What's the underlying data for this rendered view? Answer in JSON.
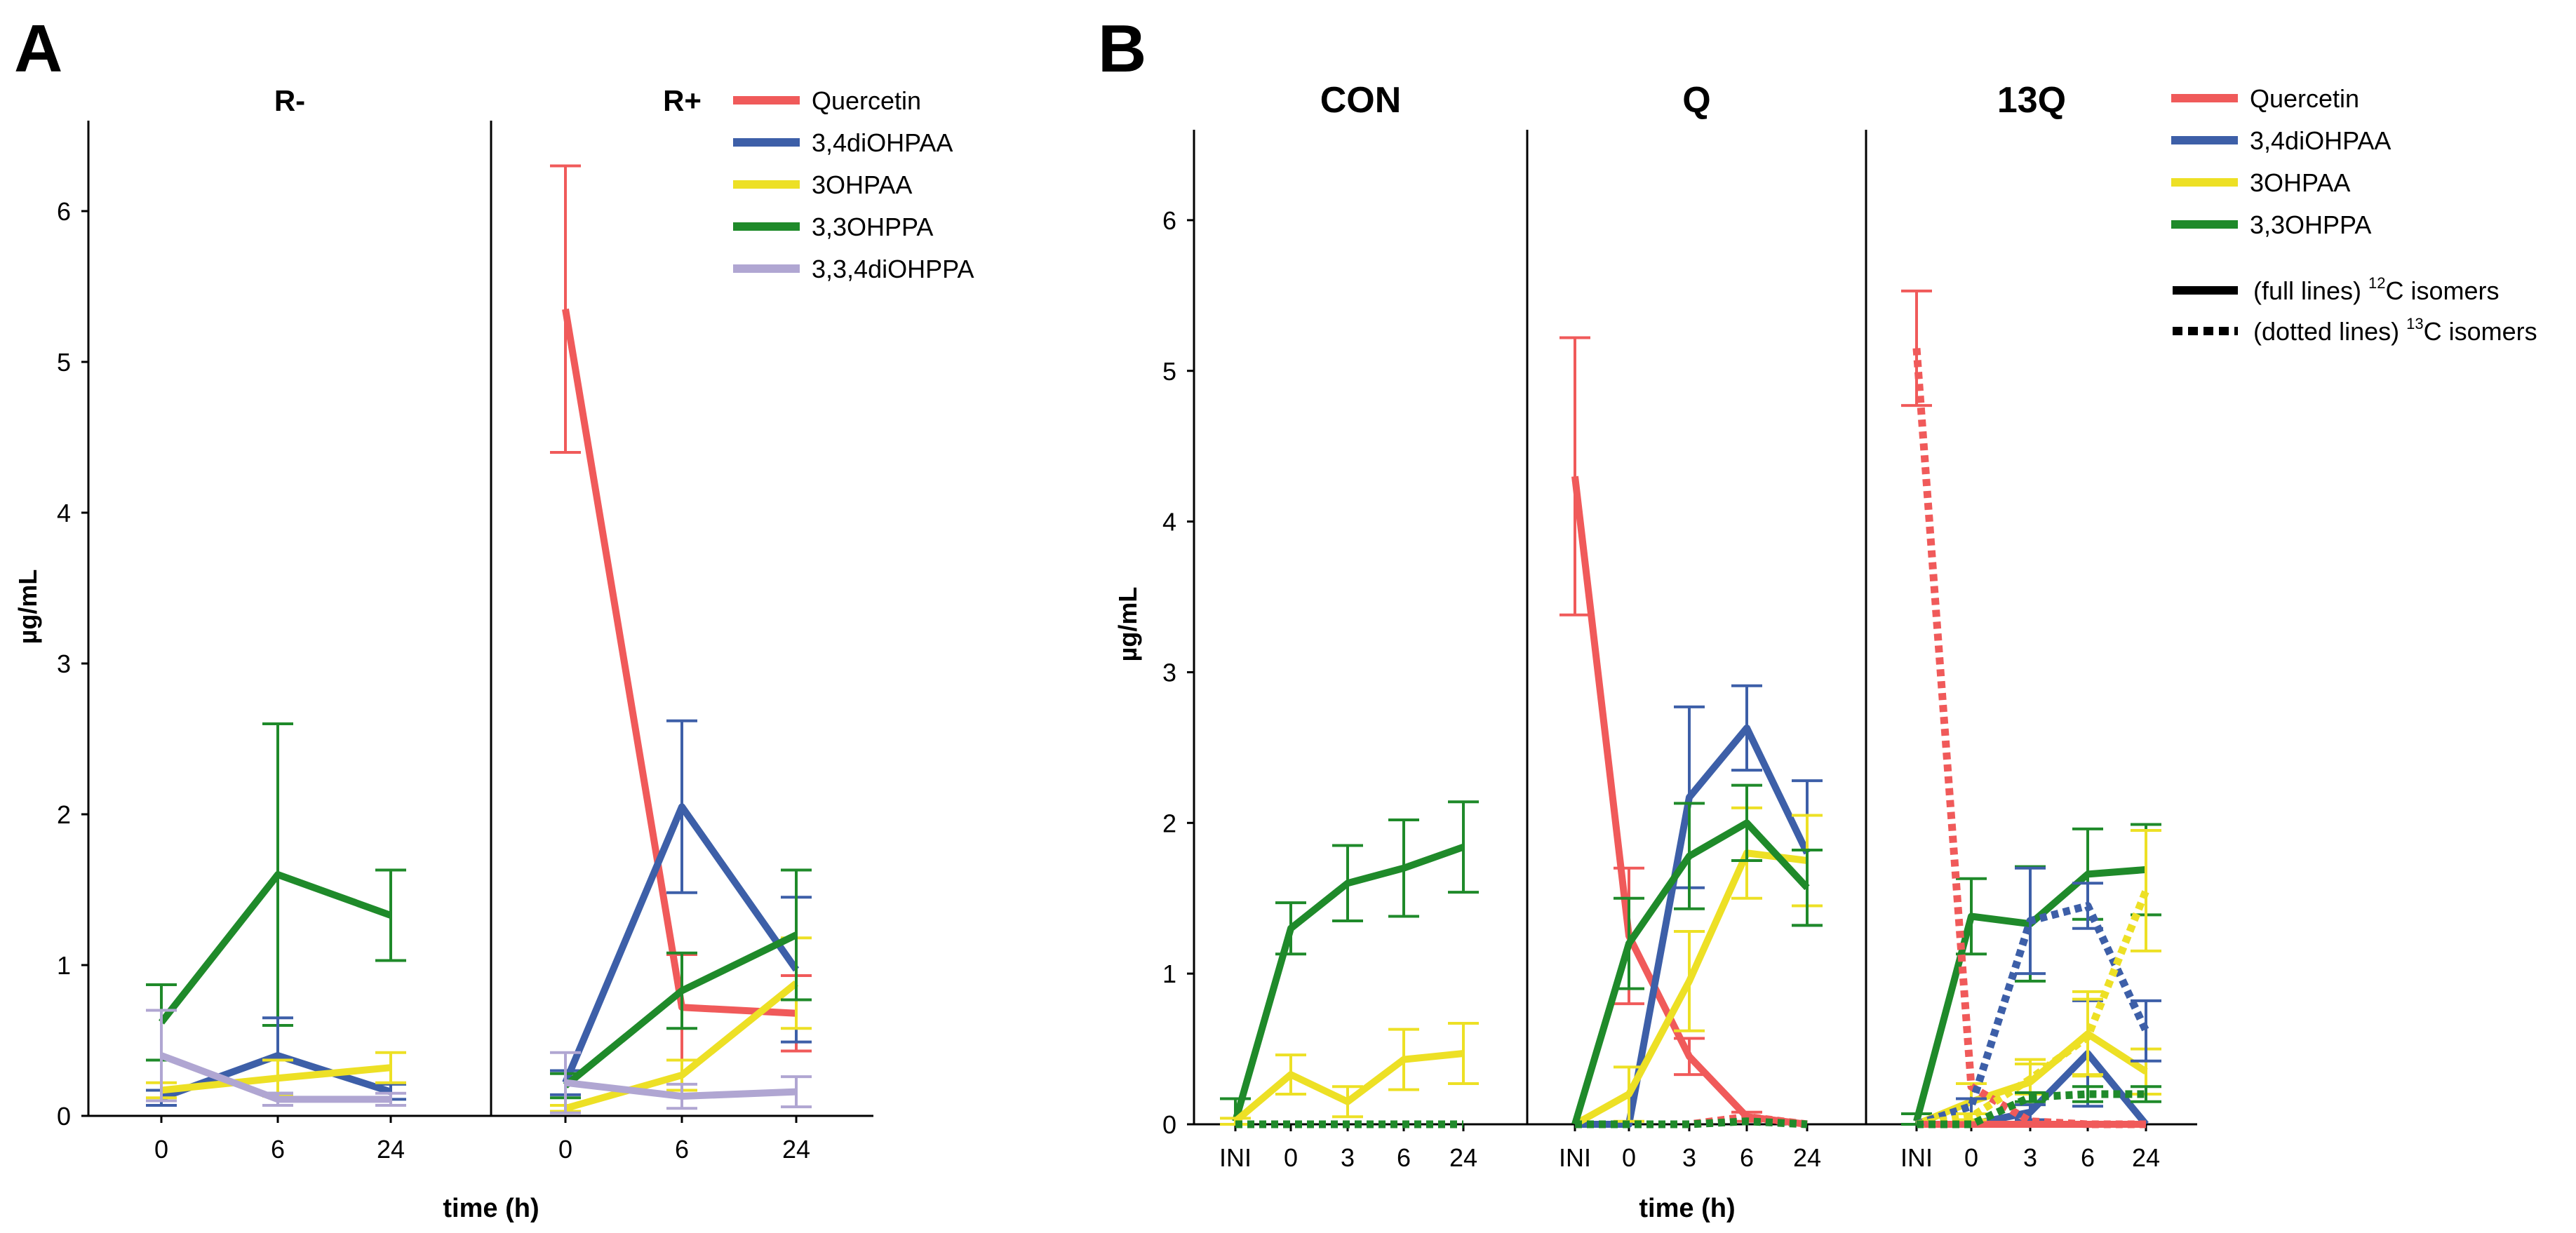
{
  "panel_letters": {
    "A": "A",
    "B": "B"
  },
  "colors": {
    "Quercetin": "#f05a5a",
    "3,4diOHPAA": "#3d5fa8",
    "3OHPAA": "#ede025",
    "3,3OHPPA": "#1f8a2a",
    "3,3,4diOHPPA": "#b0a6d2"
  },
  "chart_data": [
    {
      "id": "A-Rminus",
      "type": "line",
      "title": "R-",
      "xlabel": "time (h)",
      "ylabel": "µg/mL",
      "categories": [
        "0",
        "6",
        "24"
      ],
      "ylim": [
        0,
        6.6
      ],
      "yticks": [
        "0",
        "1",
        "2",
        "3",
        "4",
        "5",
        "6"
      ],
      "series": [
        {
          "name": "3,3OHPPA",
          "values": [
            0.62,
            1.6,
            1.33
          ],
          "err": [
            0.25,
            1.0,
            0.3
          ],
          "style": "solid"
        },
        {
          "name": "3,4diOHPAA",
          "values": [
            0.12,
            0.4,
            0.16
          ],
          "err": [
            0.05,
            0.25,
            0.05
          ],
          "style": "solid"
        },
        {
          "name": "3OHPAA",
          "values": [
            0.17,
            0.25,
            0.32
          ],
          "err": [
            0.05,
            0.12,
            0.1
          ],
          "style": "solid"
        },
        {
          "name": "3,3,4diOHPPA",
          "values": [
            0.4,
            0.11,
            0.11
          ],
          "err": [
            0.3,
            0.04,
            0.04
          ],
          "style": "solid"
        }
      ]
    },
    {
      "id": "A-Rplus",
      "type": "line",
      "title": "R+",
      "xlabel": "time (h)",
      "ylabel": "µg/mL",
      "categories": [
        "0",
        "6",
        "24"
      ],
      "ylim": [
        0,
        6.6
      ],
      "legend": [
        "Quercetin",
        "3,4diOHPAA",
        "3OHPAA",
        "3,3OHPPA",
        "3,3,4diOHPPA"
      ],
      "series": [
        {
          "name": "Quercetin",
          "values": [
            5.35,
            0.72,
            0.68
          ],
          "err": [
            0.95,
            0.35,
            0.25
          ],
          "style": "solid"
        },
        {
          "name": "3,4diOHPAA",
          "values": [
            0.22,
            2.05,
            0.97
          ],
          "err": [
            0.08,
            0.57,
            0.48
          ],
          "style": "solid"
        },
        {
          "name": "3OHPAA",
          "values": [
            0.05,
            0.27,
            0.88
          ],
          "err": [
            0.02,
            0.1,
            0.3
          ],
          "style": "solid"
        },
        {
          "name": "3,3OHPPA",
          "values": [
            0.2,
            0.83,
            1.2
          ],
          "err": [
            0.08,
            0.25,
            0.43
          ],
          "style": "solid"
        },
        {
          "name": "3,3,4diOHPPA",
          "values": [
            0.22,
            0.13,
            0.16
          ],
          "err": [
            0.2,
            0.08,
            0.1
          ],
          "style": "solid"
        }
      ]
    },
    {
      "id": "B-CON",
      "type": "line",
      "title": "CON",
      "xlabel": "time (h)",
      "ylabel": "µg/mL",
      "categories": [
        "INI",
        "0",
        "3",
        "6",
        "24"
      ],
      "ylim": [
        0,
        6.6
      ],
      "yticks": [
        "0",
        "1",
        "2",
        "3",
        "4",
        "5",
        "6"
      ],
      "series": [
        {
          "name": "3,3OHPPA",
          "values": [
            0.02,
            1.3,
            1.6,
            1.7,
            1.84
          ],
          "err": [
            0.15,
            0.17,
            0.25,
            0.32,
            0.3
          ],
          "style": "solid"
        },
        {
          "name": "3OHPAA",
          "values": [
            0.02,
            0.33,
            0.15,
            0.43,
            0.47
          ],
          "err": [
            0.02,
            0.13,
            0.1,
            0.2,
            0.2
          ],
          "style": "solid"
        },
        {
          "name": "Quercetin",
          "values": [
            0.0,
            0.0,
            0.0,
            0.0,
            0.0
          ],
          "err": [
            0,
            0,
            0,
            0,
            0
          ],
          "style": "dotted"
        },
        {
          "name": "3,3OHPPA",
          "values": [
            0.0,
            0.0,
            0.0,
            0.0,
            0.0
          ],
          "err": [
            0,
            0,
            0,
            0,
            0
          ],
          "style": "dotted"
        }
      ]
    },
    {
      "id": "B-Q",
      "type": "line",
      "title": "Q",
      "xlabel": "time (h)",
      "ylabel": "µg/mL",
      "categories": [
        "INI",
        "0",
        "3",
        "6",
        "24"
      ],
      "ylim": [
        0,
        6.6
      ],
      "series": [
        {
          "name": "Quercetin",
          "values": [
            4.3,
            1.25,
            0.45,
            0.05,
            0.0
          ],
          "err": [
            0.92,
            0.45,
            0.12,
            0.03,
            0.0
          ],
          "style": "solid"
        },
        {
          "name": "3,4diOHPAA",
          "values": [
            0.0,
            0.0,
            2.17,
            2.63,
            1.8
          ],
          "err": [
            0.0,
            0.0,
            0.6,
            0.28,
            0.48
          ],
          "style": "solid"
        },
        {
          "name": "3OHPAA",
          "values": [
            0.0,
            0.2,
            0.95,
            1.8,
            1.75
          ],
          "err": [
            0.0,
            0.18,
            0.33,
            0.3,
            0.3
          ],
          "style": "solid"
        },
        {
          "name": "3,3OHPPA",
          "values": [
            0.0,
            1.2,
            1.78,
            2.0,
            1.57
          ],
          "err": [
            0.0,
            0.3,
            0.35,
            0.25,
            0.25
          ],
          "style": "solid"
        },
        {
          "name": "Quercetin",
          "values": [
            0.0,
            0.0,
            0.0,
            0.05,
            0.0
          ],
          "err": [
            0,
            0,
            0,
            0,
            0
          ],
          "style": "dotted"
        },
        {
          "name": "3,3OHPPA",
          "values": [
            0.0,
            0.0,
            0.0,
            0.02,
            0.0
          ],
          "err": [
            0,
            0,
            0,
            0,
            0
          ],
          "style": "dotted"
        }
      ]
    },
    {
      "id": "B-13Q",
      "type": "line",
      "title": "13Q",
      "xlabel": "time (h)",
      "ylabel": "µg/mL",
      "categories": [
        "INI",
        "0",
        "3",
        "6",
        "24"
      ],
      "ylim": [
        0,
        6.6
      ],
      "legend": [
        "Quercetin",
        "3,4diOHPAA",
        "3OHPAA",
        "3,3OHPPA"
      ],
      "style_legend": [
        {
          "style": "solid",
          "text": "(full lines) ",
          "iso": "12",
          "suffix": "C isomers"
        },
        {
          "style": "dotted",
          "text": "(dotted lines) ",
          "iso": "13",
          "suffix": "C isomers"
        }
      ],
      "series": [
        {
          "name": "3,3OHPPA",
          "values": [
            0.02,
            1.38,
            1.33,
            1.66,
            1.69
          ],
          "err": [
            0.05,
            0.25,
            0.38,
            0.3,
            0.3
          ],
          "style": "solid"
        },
        {
          "name": "3OHPAA",
          "values": [
            0.0,
            0.15,
            0.28,
            0.6,
            0.35
          ],
          "err": [
            0.0,
            0.12,
            0.15,
            0.28,
            0.15
          ],
          "style": "solid"
        },
        {
          "name": "3,4diOHPAA",
          "values": [
            0.0,
            0.0,
            0.08,
            0.47,
            0.0
          ],
          "err": [
            0.0,
            0.0,
            0.05,
            0.35,
            0.0
          ],
          "style": "solid"
        },
        {
          "name": "Quercetin",
          "values": [
            0.0,
            0.0,
            0.0,
            0.0,
            0.0
          ],
          "err": [
            0,
            0,
            0,
            0,
            0
          ],
          "style": "solid"
        },
        {
          "name": "Quercetin",
          "values": [
            5.15,
            0.25,
            0.02,
            0.0,
            0.0
          ],
          "err": [
            0.38,
            0.0,
            0.0,
            0.0,
            0.0
          ],
          "style": "dotted"
        },
        {
          "name": "3,4diOHPAA",
          "values": [
            0.0,
            0.12,
            1.35,
            1.45,
            0.62
          ],
          "err": [
            0.0,
            0.05,
            0.35,
            0.15,
            0.2
          ],
          "style": "dotted"
        },
        {
          "name": "3OHPAA",
          "values": [
            0.0,
            0.05,
            0.3,
            0.58,
            1.55
          ],
          "err": [
            0.0,
            0.02,
            0.1,
            0.25,
            0.4
          ],
          "style": "dotted"
        },
        {
          "name": "3,3OHPPA",
          "values": [
            0.0,
            0.0,
            0.18,
            0.2,
            0.2
          ],
          "err": [
            0.0,
            0.0,
            0.03,
            0.05,
            0.05
          ],
          "style": "dotted"
        }
      ]
    }
  ]
}
